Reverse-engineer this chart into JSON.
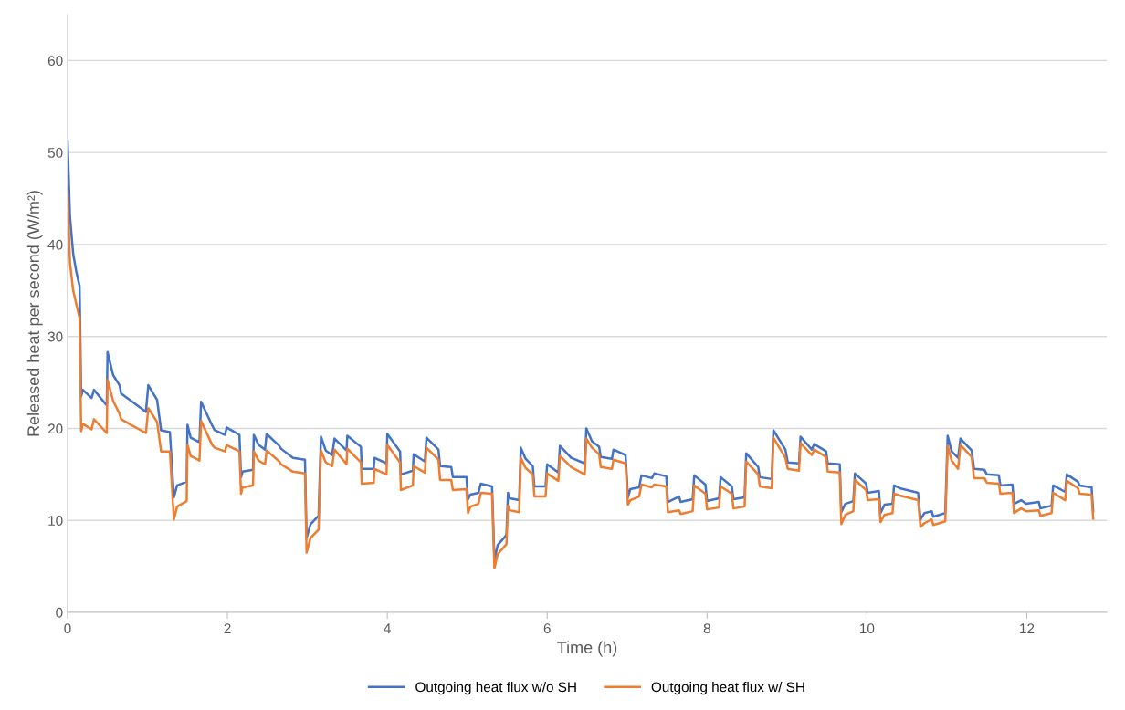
{
  "chart_data": {
    "type": "line",
    "xlabel": "Time (h)",
    "ylabel": "Released heat per second (W/m²)",
    "x": [
      0,
      0.03,
      0.07,
      0.11,
      0.15,
      0.17,
      0.19,
      0.3,
      0.33,
      0.49,
      0.5,
      0.57,
      0.65,
      0.67,
      0.81,
      0.98,
      1.01,
      1.12,
      1.17,
      1.28,
      1.33,
      1.37,
      1.49,
      1.5,
      1.54,
      1.65,
      1.67,
      1.81,
      1.84,
      1.97,
      1.99,
      2.15,
      2.17,
      2.19,
      2.32,
      2.33,
      2.39,
      2.47,
      2.49,
      2.65,
      2.67,
      2.82,
      2.97,
      2.99,
      3.04,
      3.14,
      3.17,
      3.23,
      3.31,
      3.34,
      3.49,
      3.5,
      3.67,
      3.68,
      3.83,
      3.84,
      3.99,
      4.0,
      4.16,
      4.17,
      4.32,
      4.33,
      4.47,
      4.49,
      4.64,
      4.66,
      4.8,
      4.82,
      4.99,
      5.01,
      5.04,
      5.14,
      5.17,
      5.31,
      5.34,
      5.38,
      5.49,
      5.51,
      5.53,
      5.65,
      5.67,
      5.73,
      5.82,
      5.84,
      5.98,
      6.0,
      6.14,
      6.16,
      6.3,
      6.47,
      6.49,
      6.56,
      6.65,
      6.67,
      6.81,
      6.83,
      6.98,
      7.01,
      7.04,
      7.15,
      7.18,
      7.31,
      7.34,
      7.49,
      7.51,
      7.65,
      7.67,
      7.82,
      7.84,
      7.98,
      8.0,
      8.15,
      8.17,
      8.31,
      8.33,
      8.47,
      8.49,
      8.64,
      8.66,
      8.81,
      8.83,
      8.98,
      9.01,
      9.15,
      9.17,
      9.31,
      9.34,
      9.49,
      9.51,
      9.66,
      9.68,
      9.73,
      9.83,
      9.85,
      9.99,
      10.01,
      10.15,
      10.17,
      10.22,
      10.32,
      10.34,
      10.41,
      10.64,
      10.67,
      10.72,
      10.81,
      10.83,
      10.98,
      11.01,
      11.06,
      11.14,
      11.17,
      11.31,
      11.34,
      11.47,
      11.5,
      11.65,
      11.67,
      11.82,
      11.84,
      11.93,
      11.99,
      12.15,
      12.17,
      12.31,
      12.33,
      12.48,
      12.5,
      12.64,
      12.66,
      12.81,
      12.83
    ],
    "series": [
      {
        "name": "Outgoing heat flux w/o SH",
        "color": "#4472c4",
        "values": [
          51.3,
          43,
          39,
          37,
          35.5,
          23.5,
          24.2,
          23.3,
          24.2,
          22.5,
          28.3,
          25.8,
          24.7,
          23.8,
          22.9,
          21.8,
          24.7,
          23.1,
          19.8,
          19.6,
          12.5,
          13.8,
          14.2,
          20.4,
          19,
          18.5,
          22.9,
          20.3,
          19.8,
          19.3,
          20.1,
          19.3,
          14.7,
          15.3,
          15.5,
          19.3,
          18.2,
          17.7,
          19.4,
          18.1,
          17.8,
          16.8,
          16.6,
          8.1,
          9.6,
          10.5,
          19.1,
          17.6,
          17.1,
          18.9,
          17.6,
          19.2,
          18.0,
          15.6,
          15.6,
          16.8,
          16.2,
          19.4,
          17.5,
          15.0,
          15.4,
          17.2,
          16.4,
          19.0,
          17.7,
          15.9,
          15.8,
          14.7,
          14.7,
          12.3,
          12.8,
          13.0,
          14.0,
          13.7,
          5.7,
          7.3,
          8.4,
          13.0,
          12.4,
          12.2,
          17.9,
          16.7,
          15.9,
          13.7,
          13.7,
          16.1,
          15.2,
          18.1,
          16.8,
          16.2,
          20.0,
          18.6,
          18.0,
          16.9,
          16.7,
          17.7,
          17.1,
          12.5,
          13.4,
          13.6,
          14.9,
          14.6,
          15.1,
          14.8,
          12.0,
          12.6,
          12.0,
          12.3,
          14.9,
          13.9,
          12.1,
          12.4,
          14.7,
          13.7,
          12.3,
          12.5,
          17.3,
          15.8,
          14.7,
          14.5,
          19.8,
          17.7,
          16.3,
          16.2,
          19.1,
          17.7,
          18.3,
          17.5,
          16.2,
          16.1,
          10.9,
          11.8,
          12.1,
          15.1,
          14.0,
          13.0,
          13.2,
          10.8,
          11.7,
          11.8,
          13.8,
          13.5,
          13.0,
          10.1,
          10.8,
          11.0,
          10.4,
          10.8,
          19.2,
          17.5,
          16.8,
          18.9,
          17.6,
          15.6,
          15.5,
          15.0,
          14.9,
          13.8,
          13.9,
          11.8,
          12.2,
          11.8,
          12.0,
          11.3,
          11.6,
          13.8,
          13.1,
          15.0,
          14.2,
          13.8,
          13.6,
          11.0
        ]
      },
      {
        "name": "Outgoing heat flux w/ SH",
        "color": "#ed7d31",
        "values": [
          45.5,
          38,
          35,
          33.5,
          32,
          19.7,
          20.5,
          19.9,
          21,
          19.5,
          25.3,
          23,
          21.6,
          21,
          20.3,
          19.5,
          22.2,
          20.7,
          17.5,
          17.5,
          10.1,
          11.5,
          12.1,
          18.2,
          17,
          16.5,
          20.8,
          18.2,
          17.9,
          17.5,
          18.2,
          17.5,
          12.9,
          13.6,
          13.8,
          17.5,
          16.5,
          16.1,
          17.6,
          16.4,
          16.1,
          15.3,
          15.1,
          6.5,
          8.1,
          9.0,
          17.6,
          16.3,
          15.9,
          17.7,
          16.1,
          17.8,
          16.3,
          14.0,
          14.1,
          15.6,
          15.0,
          18.2,
          16.3,
          13.3,
          13.8,
          15.9,
          15.2,
          17.9,
          16.6,
          14.4,
          14.4,
          13.3,
          13.4,
          10.8,
          11.5,
          11.8,
          13.0,
          12.9,
          4.8,
          6.3,
          7.4,
          11.6,
          11.1,
          10.9,
          16.8,
          15.7,
          15.0,
          12.6,
          12.6,
          15.1,
          14.3,
          17.0,
          15.8,
          15.0,
          18.9,
          17.9,
          17.2,
          15.8,
          15.6,
          16.6,
          16.2,
          11.7,
          12.2,
          12.6,
          13.9,
          13.6,
          13.9,
          13.7,
          10.9,
          11.1,
          10.7,
          11.0,
          13.8,
          12.9,
          11.2,
          11.4,
          13.7,
          12.9,
          11.3,
          11.5,
          16.4,
          15.0,
          13.7,
          13.5,
          19.0,
          16.8,
          15.6,
          15.4,
          18.4,
          17.1,
          17.7,
          16.9,
          15.3,
          15.2,
          9.6,
          10.6,
          11.0,
          14.4,
          13.3,
          12.2,
          12.3,
          9.8,
          10.6,
          10.8,
          12.9,
          12.7,
          12.2,
          9.3,
          9.7,
          10.1,
          9.5,
          9.9,
          18.1,
          16.5,
          15.6,
          18.2,
          16.9,
          14.6,
          14.6,
          14.1,
          14.0,
          12.9,
          13.0,
          10.8,
          11.3,
          11.0,
          11.1,
          10.5,
          10.8,
          13.0,
          12.2,
          14.3,
          13.5,
          12.9,
          12.8,
          10.2
        ]
      }
    ],
    "xlim": [
      0,
      13
    ],
    "xticks": [
      0,
      2,
      4,
      6,
      8,
      10,
      12
    ],
    "ylim": [
      0,
      65
    ],
    "yticks": [
      0,
      10,
      20,
      30,
      40,
      50,
      60
    ],
    "grid": "y",
    "legend": "bottom",
    "marker": "none",
    "line_style": "solid"
  }
}
